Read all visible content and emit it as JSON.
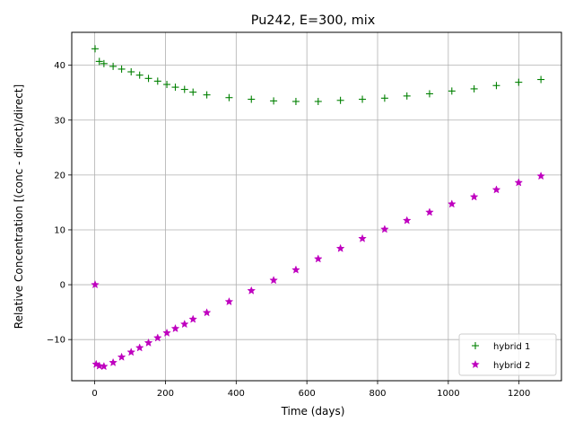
{
  "chart_data": {
    "type": "scatter",
    "title": "Pu242, E=300, mix",
    "xlabel": "Time (days)",
    "ylabel": "Relative Concentration [(conc - direct)/direct]",
    "xlim": [
      -65,
      1320
    ],
    "ylim": [
      -17.5,
      46
    ],
    "xticks": [
      0,
      200,
      400,
      600,
      800,
      1000,
      1200
    ],
    "yticks": [
      -10,
      0,
      10,
      20,
      30,
      40
    ],
    "xtick_labels": [
      "0",
      "200",
      "400",
      "600",
      "800",
      "1000",
      "1200"
    ],
    "ytick_labels": [
      "−10",
      "0",
      "10",
      "20",
      "30",
      "40"
    ],
    "grid": true,
    "legend_position": "lower-right",
    "series": [
      {
        "name": "hybrid 1",
        "marker": "plus",
        "color": "#008000",
        "x": [
          1,
          13,
          26,
          52,
          76,
          103,
          127,
          152,
          178,
          204,
          228,
          254,
          278,
          317,
          380,
          443,
          506,
          569,
          632,
          695,
          757,
          820,
          883,
          947,
          1010,
          1073,
          1136,
          1199,
          1262
        ],
        "y": [
          43.0,
          40.7,
          40.3,
          39.8,
          39.3,
          38.8,
          38.2,
          37.6,
          37.1,
          36.5,
          36.0,
          35.6,
          35.1,
          34.6,
          34.1,
          33.8,
          33.5,
          33.4,
          33.4,
          33.6,
          33.8,
          34.0,
          34.4,
          34.8,
          35.3,
          35.7,
          36.3,
          36.9,
          37.4
        ]
      },
      {
        "name": "hybrid 2",
        "marker": "star",
        "color": "#bf00bf",
        "x": [
          1,
          4,
          13,
          26,
          52,
          76,
          103,
          127,
          152,
          178,
          204,
          228,
          254,
          278,
          317,
          380,
          443,
          506,
          569,
          632,
          695,
          757,
          820,
          883,
          947,
          1010,
          1073,
          1136,
          1199,
          1262
        ],
        "y": [
          0.0,
          -14.5,
          -14.8,
          -14.9,
          -14.2,
          -13.2,
          -12.3,
          -11.5,
          -10.6,
          -9.7,
          -8.8,
          -8.0,
          -7.2,
          -6.3,
          -5.1,
          -3.1,
          -1.1,
          0.8,
          2.7,
          4.7,
          6.6,
          8.4,
          10.1,
          11.7,
          13.2,
          14.7,
          16.0,
          17.3,
          18.6,
          19.8
        ]
      }
    ]
  }
}
